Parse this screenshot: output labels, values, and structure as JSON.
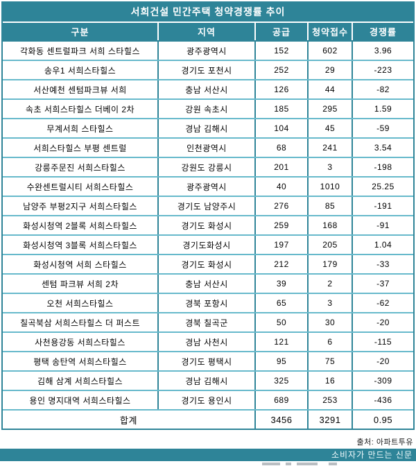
{
  "chart_data": {
    "type": "table",
    "title": "서희건설 민간주택 청약경쟁률 추이",
    "columns": [
      "구분",
      "지역",
      "공급",
      "청약접수",
      "경쟁률"
    ],
    "rows": [
      [
        "각화동 센트럴파크 서희 스타힐스",
        "광주광역시",
        "152",
        "602",
        "3.96"
      ],
      [
        "송우1 서희스타힐스",
        "경기도 포천시",
        "252",
        "29",
        "-223"
      ],
      [
        "서산예천 센텀파크뷰 서희",
        "충남 서산시",
        "126",
        "44",
        "-82"
      ],
      [
        "속초 서희스타힐스 더베이 2차",
        "강원 속초시",
        "185",
        "295",
        "1.59"
      ],
      [
        "무계서희 스타힐스",
        "경남 김해시",
        "104",
        "45",
        "-59"
      ],
      [
        "서희스타힐스 부평 센트럴",
        "인천광역시",
        "68",
        "241",
        "3.54"
      ],
      [
        "강릉주문진 서희스타힐스",
        "강원도 강릉시",
        "201",
        "3",
        "-198"
      ],
      [
        "수완센트럴시티 서희스타힐스",
        "광주광역시",
        "40",
        "1010",
        "25.25"
      ],
      [
        "남양주 부평2지구 서희스타힐스",
        "경기도 남양주시",
        "276",
        "85",
        "-191"
      ],
      [
        "화성시청역 2블록 서희스타힐스",
        "경기도 화성시",
        "259",
        "168",
        "-91"
      ],
      [
        "화성시청역 3블록 서희스타힐스",
        "경기도화성시",
        "197",
        "205",
        "1.04"
      ],
      [
        "화성시청역 서희 스타힐스",
        "경기도 화성시",
        "212",
        "179",
        "-33"
      ],
      [
        "센텀 파크뷰 서희 2차",
        "충남 서산시",
        "39",
        "2",
        "-37"
      ],
      [
        "오천 서희스타힐스",
        "경북 포항시",
        "65",
        "3",
        "-62"
      ],
      [
        "칠곡북삼 서희스타힐스 더 퍼스트",
        "경북 칠곡군",
        "50",
        "30",
        "-20"
      ],
      [
        "사천용강동 서희스타힐스",
        "경남 사천시",
        "121",
        "6",
        "-115"
      ],
      [
        "평택 송탄역 서희스타힐스",
        "경기도 평택시",
        "95",
        "75",
        "-20"
      ],
      [
        "김해 삼계 서희스타힐스",
        "경남 김해시",
        "325",
        "16",
        "-309"
      ],
      [
        "용인 명지대역 서희스타힐스",
        "경기도 용인시",
        "689",
        "253",
        "-436"
      ]
    ],
    "total": {
      "label": "합계",
      "supply": "3456",
      "applications": "3291",
      "rate": "0.95"
    },
    "source_note": "출처: 아파트투유"
  },
  "footer": {
    "bar_text": "소비자가 만드는 신문"
  },
  "colors": {
    "teal": "#2e8498",
    "row_border": "#66b9cb",
    "header_text": "#ffffff",
    "body_text": "#000000"
  }
}
